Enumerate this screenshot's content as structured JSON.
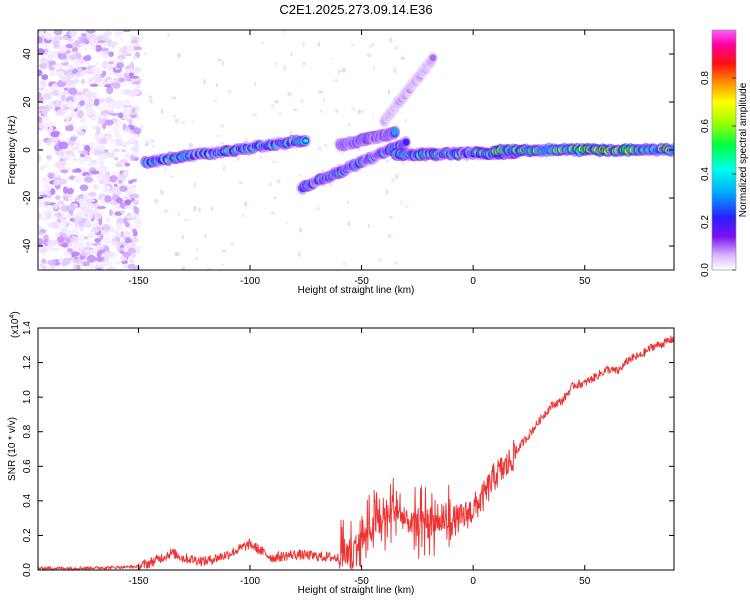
{
  "title": "C2E1.2025.273.09.14.E36",
  "colors": {
    "snr_line": "#ee3333",
    "axis": "#000000",
    "colormap": [
      "#ffffff",
      "#e8d2ff",
      "#b070ff",
      "#6a00e8",
      "#2020ff",
      "#00b0ff",
      "#00ffe0",
      "#00ff00",
      "#c8ff00",
      "#ffff00",
      "#ff8000",
      "#ff0000",
      "#ff00ff"
    ]
  },
  "chart_data": [
    {
      "type": "heatmap",
      "title": "C2E1.2025.273.09.14.E36",
      "xlabel": "Height of straight line (km)",
      "ylabel": "Frequency (Hz)",
      "xlim": [
        -195,
        90
      ],
      "ylim": [
        -50,
        50
      ],
      "x_ticks": [
        -150,
        -100,
        -50,
        0,
        50
      ],
      "y_ticks": [
        -40,
        -20,
        0,
        20,
        40
      ],
      "colorbar": {
        "label": "Normalized spectral amplitude",
        "range": [
          0,
          1
        ],
        "ticks": [
          "0.0",
          "0.2",
          "0.4",
          "0.6",
          "0.8"
        ],
        "tick_values": [
          0,
          0.2,
          0.4,
          0.6,
          0.8
        ]
      },
      "features": [
        {
          "from": [
            -147,
            -5
          ],
          "to": [
            -75,
            4
          ],
          "amplitude": 0.6
        },
        {
          "from": [
            -77,
            -16
          ],
          "to": [
            -30,
            3
          ],
          "amplitude": 0.55
        },
        {
          "from": [
            -60,
            2
          ],
          "to": [
            -35,
            7
          ],
          "amplitude": 0.5
        },
        {
          "from": [
            -35,
            -2
          ],
          "to": [
            20,
            -1
          ],
          "amplitude": 0.65
        },
        {
          "from": [
            10,
            0
          ],
          "to": [
            90,
            0
          ],
          "amplitude": 0.85
        },
        {
          "from": [
            -40,
            12
          ],
          "to": [
            -18,
            38
          ],
          "amplitude": 0.25
        }
      ]
    },
    {
      "type": "line",
      "xlabel": "Height of straight line (km)",
      "ylabel": "SNR (10 * v/v)",
      "scale_label": "(x10",
      "scale_exponent": "4",
      "xlim": [
        -195,
        90
      ],
      "ylim": [
        0,
        1.4
      ],
      "x_ticks": [
        -150,
        -100,
        -50,
        0,
        50
      ],
      "y_ticks": [
        "0.0",
        "0.2",
        "0.4",
        "0.6",
        "0.8",
        "1.0",
        "1.2",
        "1.4"
      ],
      "y_tick_values": [
        0,
        0.2,
        0.4,
        0.6,
        0.8,
        1.0,
        1.2,
        1.4
      ],
      "x": [
        -195,
        -180,
        -160,
        -150,
        -145,
        -140,
        -135,
        -130,
        -120,
        -110,
        -100,
        -90,
        -80,
        -70,
        -60,
        -55,
        -50,
        -45,
        -40,
        -35,
        -30,
        -25,
        -20,
        -15,
        -10,
        -5,
        0,
        5,
        10,
        15,
        20,
        25,
        30,
        35,
        40,
        45,
        50,
        55,
        60,
        65,
        70,
        75,
        80,
        85,
        90
      ],
      "y": [
        0.01,
        0.01,
        0.015,
        0.02,
        0.04,
        0.07,
        0.1,
        0.07,
        0.05,
        0.09,
        0.15,
        0.07,
        0.09,
        0.08,
        0.07,
        0.1,
        0.17,
        0.25,
        0.3,
        0.35,
        0.28,
        0.26,
        0.3,
        0.27,
        0.28,
        0.3,
        0.35,
        0.43,
        0.55,
        0.6,
        0.7,
        0.78,
        0.87,
        0.95,
        0.98,
        1.07,
        1.08,
        1.12,
        1.16,
        1.15,
        1.22,
        1.24,
        1.29,
        1.31,
        1.34
      ]
    }
  ]
}
